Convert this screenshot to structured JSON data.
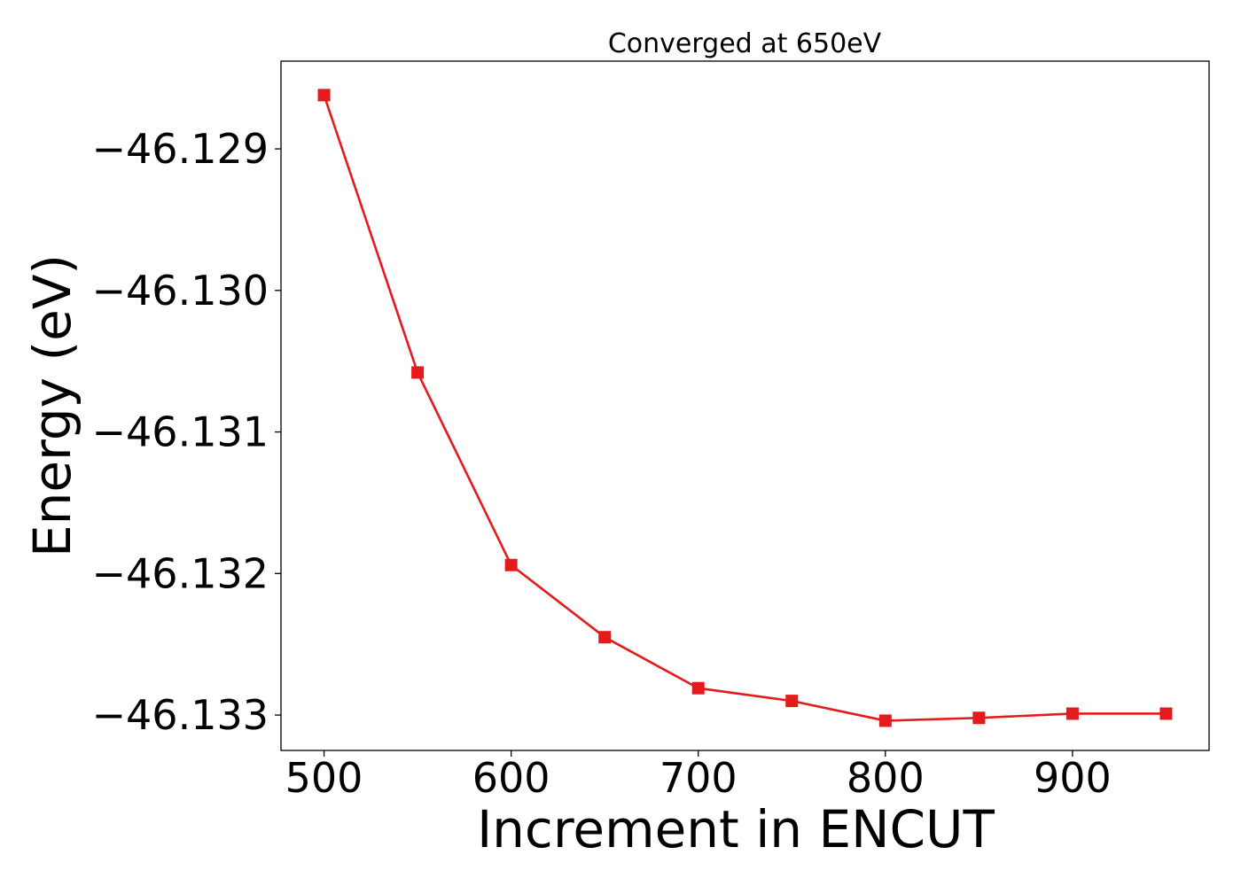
{
  "chart_data": {
    "type": "line",
    "title": "Converged at 650eV",
    "xlabel": "Increment in ENCUT",
    "ylabel": "Energy (eV)",
    "xlim": [
      477,
      973
    ],
    "ylim": [
      -46.13325,
      -46.12838
    ],
    "xticks": [
      500,
      600,
      700,
      800,
      900
    ],
    "yticks": [
      -46.129,
      -46.13,
      -46.131,
      -46.132,
      -46.133
    ],
    "ytick_labels": [
      "−46.129",
      "−46.130",
      "−46.131",
      "−46.132",
      "−46.133"
    ],
    "grid": false,
    "series": [
      {
        "color": "#e41a1c",
        "marker": "square",
        "x": [
          500,
          550,
          600,
          650,
          700,
          750,
          800,
          850,
          900,
          950
        ],
        "y": [
          -46.12862,
          -46.13058,
          -46.13194,
          -46.13245,
          -46.13281,
          -46.1329,
          -46.13304,
          -46.13302,
          -46.13299,
          -46.13299
        ]
      }
    ]
  }
}
